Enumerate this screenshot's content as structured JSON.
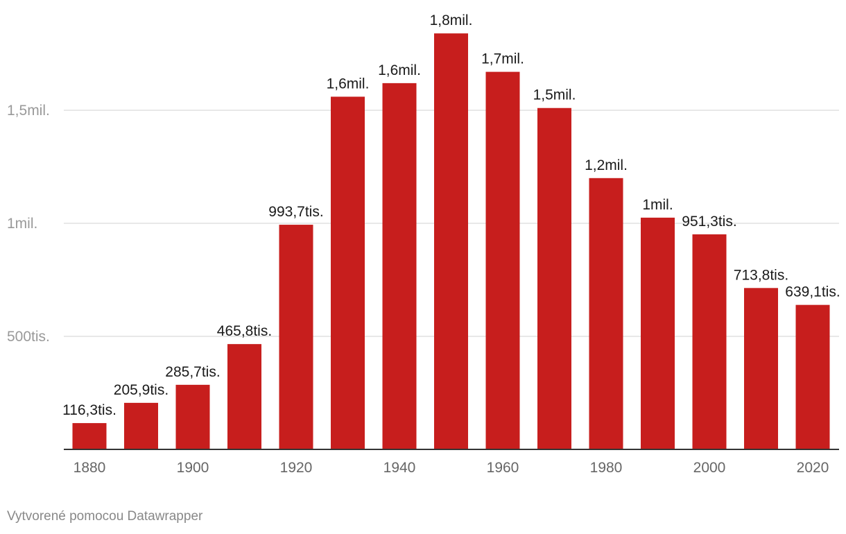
{
  "chart_data": {
    "type": "bar",
    "categories": [
      "1880",
      "1890",
      "1900",
      "1910",
      "1920",
      "1930",
      "1940",
      "1950",
      "1960",
      "1970",
      "1980",
      "1990",
      "2000",
      "2010",
      "2020"
    ],
    "values": [
      116300,
      205900,
      285700,
      465800,
      993700,
      1560000,
      1620000,
      1840000,
      1670000,
      1510000,
      1200000,
      1025000,
      951300,
      713800,
      639100
    ],
    "data_labels": [
      "116,3tis.",
      "205,9tis.",
      "285,7tis.",
      "465,8tis.",
      "993,7tis.",
      "1,6mil.",
      "1,6mil.",
      "1,8mil.",
      "1,7mil.",
      "1,5mil.",
      "1,2mil.",
      "1mil.",
      "951,3tis.",
      "713,8tis.",
      "639,1tis."
    ],
    "x_tick_labels": [
      "1880",
      "1900",
      "1920",
      "1940",
      "1960",
      "1980",
      "2000",
      "2020"
    ],
    "y_ticks": [
      {
        "value": 500000,
        "label": "500tis."
      },
      {
        "value": 1000000,
        "label": "1mil."
      },
      {
        "value": 1500000,
        "label": "1,5mil."
      }
    ],
    "ylim": [
      0,
      1840000
    ],
    "grid": true,
    "colors": {
      "bar": "#c71e1d",
      "grid": "#e0e0e0",
      "axis": "#333333",
      "tick_text": "#999999",
      "label_text": "#1a1a1a"
    },
    "title": "",
    "xlabel": "",
    "ylabel": ""
  },
  "footer": {
    "credit": "Vytvorené pomocou Datawrapper"
  }
}
